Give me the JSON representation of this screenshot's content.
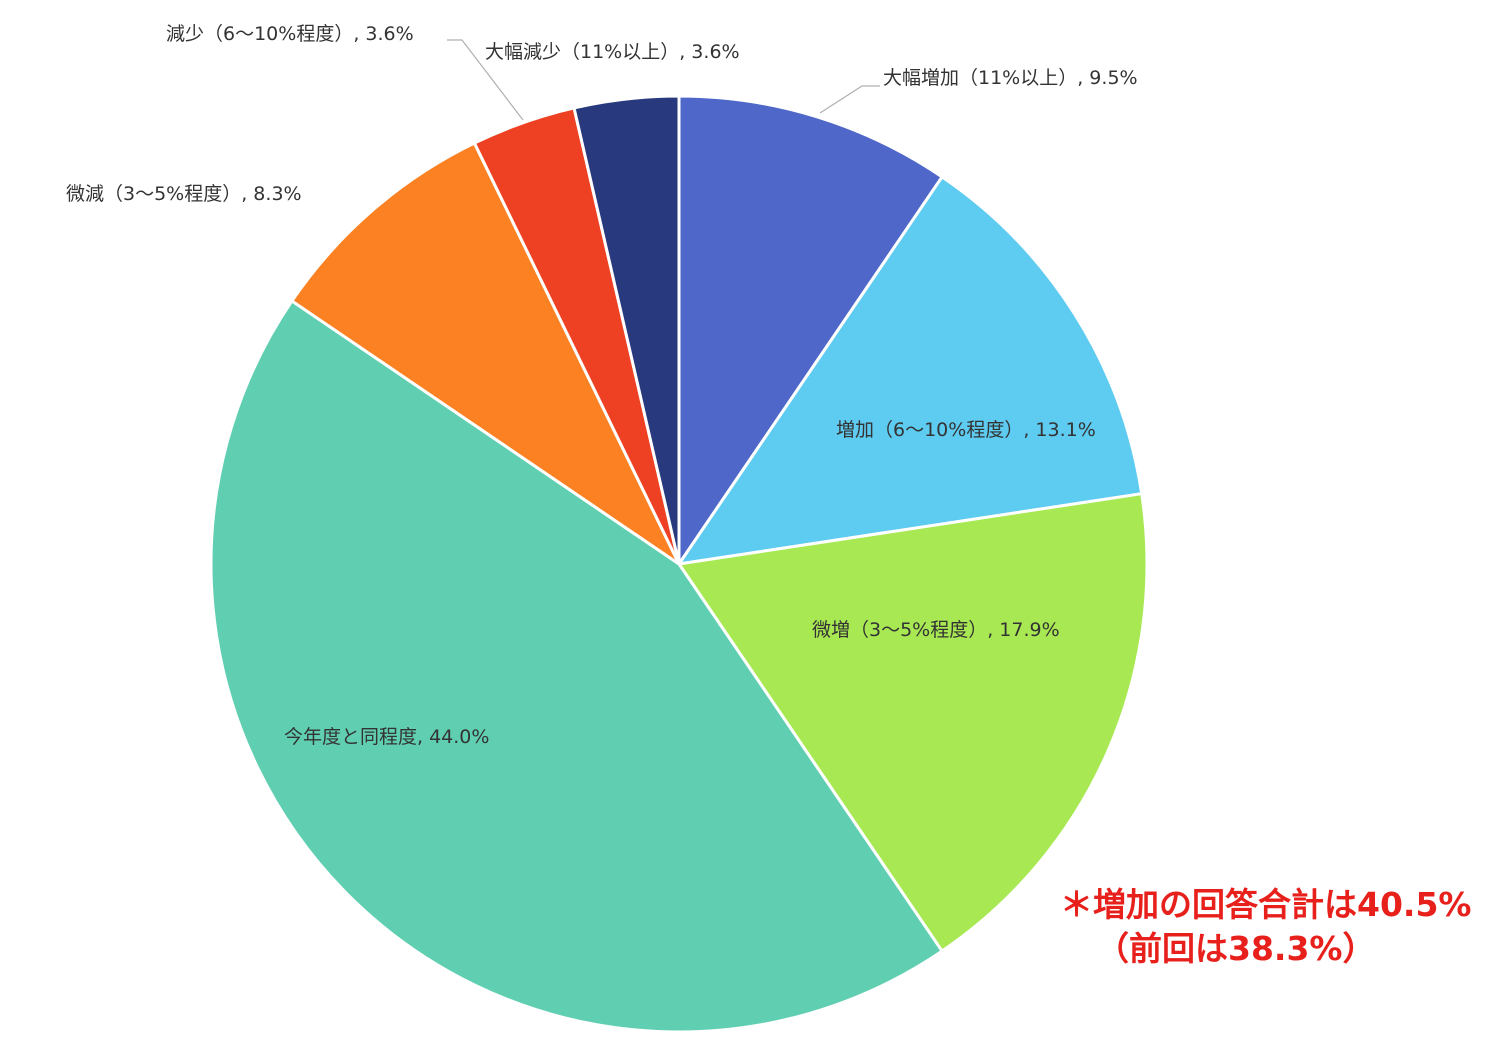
{
  "chart_data": {
    "type": "pie",
    "title": "",
    "start": "12 o'clock",
    "direction": "clockwise",
    "slices": [
      {
        "label": "大幅増加（11%以上）",
        "value": 9.5,
        "value_text": "9.5%",
        "color": "#4f67c8"
      },
      {
        "label": "増加（6～10%程度）",
        "value": 13.1,
        "value_text": "13.1%",
        "color": "#5ecbf1"
      },
      {
        "label": "微増（3～5%程度）",
        "value": 17.9,
        "value_text": "17.9%",
        "color": "#a8e953"
      },
      {
        "label": "今年度と同程度",
        "value": 44.0,
        "value_text": "44.0%",
        "color": "#60cfb1"
      },
      {
        "label": "微減（3～5%程度）",
        "value": 8.3,
        "value_text": "8.3%",
        "color": "#fb8122"
      },
      {
        "label": "減少（6～10%程度）",
        "value": 3.6,
        "value_text": "3.6%",
        "color": "#ee4123"
      },
      {
        "label": "大幅減少（11%以上）",
        "value": 3.6,
        "value_text": "3.6%",
        "color": "#283a7d"
      }
    ]
  },
  "annotation": {
    "line1": "＊増加の回答合計は40.5%",
    "line2": "（前回は38.3%）",
    "color": "#e8201c"
  }
}
